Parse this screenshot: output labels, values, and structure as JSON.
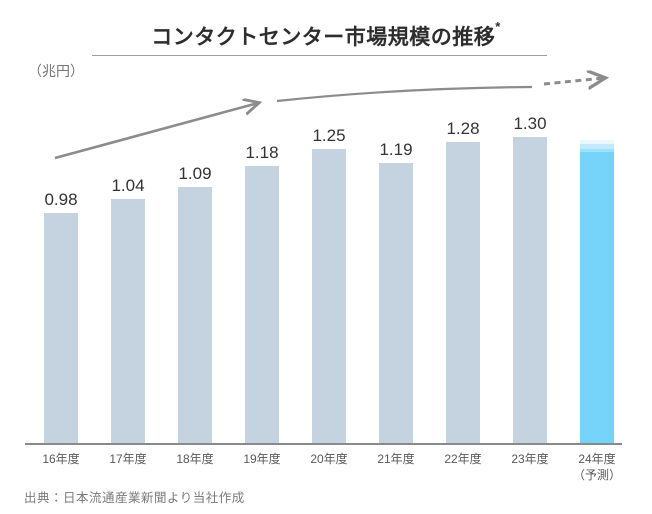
{
  "chart": {
    "title": "コンタクトセンター市場規模の推移",
    "title_superscript": "*",
    "unit_label": "（兆円）",
    "source_note": "出典：日本流通産業新聞より当社作成"
  },
  "chart_data": {
    "type": "bar",
    "title": "コンタクトセンター市場規模の推移*",
    "ylabel": "（兆円）",
    "categories": [
      "16年度",
      "17年度",
      "18年度",
      "19年度",
      "20年度",
      "21年度",
      "22年度",
      "23年度",
      "24年度"
    ],
    "category_sublabels": [
      "",
      "",
      "",
      "",
      "",
      "",
      "",
      "",
      "（予測）"
    ],
    "values": [
      0.98,
      1.04,
      1.09,
      1.18,
      1.25,
      1.19,
      1.28,
      1.3,
      1.29
    ],
    "value_labels": [
      "0.98",
      "1.04",
      "1.09",
      "1.18",
      "1.25",
      "1.19",
      "1.28",
      "1.30",
      ""
    ],
    "highlighted_index": 8,
    "ylim": [
      0,
      1.5
    ],
    "grid": false,
    "legend": false,
    "bar_color": "#c5d3e0",
    "highlight_color": "#76d4fb",
    "trend_arrow_color": "#8c8c8c",
    "annotations": [
      "solid rising trend arrow over 16-19年度",
      "solid rising line over 19-23年度",
      "dashed arrow over 24年度 forecast"
    ]
  }
}
